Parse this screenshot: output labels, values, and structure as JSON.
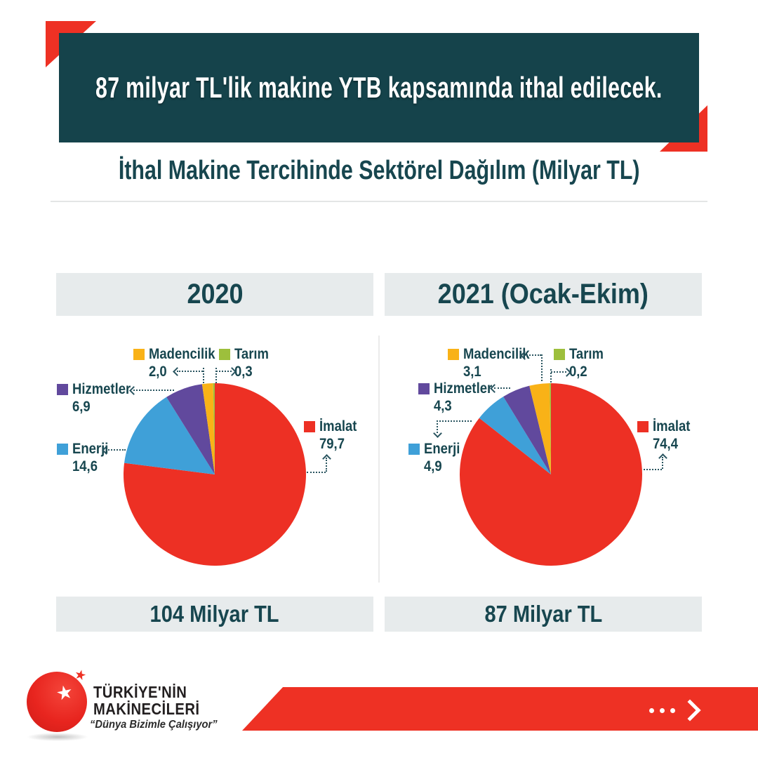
{
  "banner": {
    "title": "87 milyar TL'lik makine YTB kapsamında ithal edilecek."
  },
  "subtitle": "İthal Makine Tercihinde Sektörel Dağılım (Milyar TL)",
  "chart_data": [
    {
      "type": "pie",
      "title": "2020",
      "total_label": "104 Milyar TL",
      "unit": "Milyar TL",
      "legend_position": "around",
      "slices": [
        {
          "label": "İmalat",
          "value": 79.7,
          "display": "79,7",
          "color": "#ed3024"
        },
        {
          "label": "Enerji",
          "value": 14.6,
          "display": "14,6",
          "color": "#3fa0d8"
        },
        {
          "label": "Hizmetler",
          "value": 6.9,
          "display": "6,9",
          "color": "#61499d"
        },
        {
          "label": "Madencilik",
          "value": 2.0,
          "display": "2,0",
          "color": "#f9b217"
        },
        {
          "label": "Tarım",
          "value": 0.3,
          "display": "0,3",
          "color": "#9dbf3c"
        }
      ]
    },
    {
      "type": "pie",
      "title": "2021 (Ocak-Ekim)",
      "total_label": "87 Milyar TL",
      "unit": "Milyar TL",
      "legend_position": "around",
      "slices": [
        {
          "label": "İmalat",
          "value": 74.4,
          "display": "74,4",
          "color": "#ed3024"
        },
        {
          "label": "Enerji",
          "value": 4.9,
          "display": "4,9",
          "color": "#3fa0d8"
        },
        {
          "label": "Hizmetler",
          "value": 4.3,
          "display": "4,3",
          "color": "#61499d"
        },
        {
          "label": "Madencilik",
          "value": 3.1,
          "display": "3,1",
          "color": "#f9b217"
        },
        {
          "label": "Tarım",
          "value": 0.2,
          "display": "0,2",
          "color": "#9dbf3c"
        }
      ]
    }
  ],
  "logo": {
    "line1": "TÜRKİYE'NİN",
    "line2": "MAKİNECİLERİ",
    "slogan": "“Dünya Bizimle Çalışıyor”",
    "star_icon": "★"
  },
  "colors": {
    "banner_teal": "#15434b",
    "accent_red": "#ee3124",
    "text_teal": "#17464f",
    "box_gray": "#e7ebec"
  }
}
